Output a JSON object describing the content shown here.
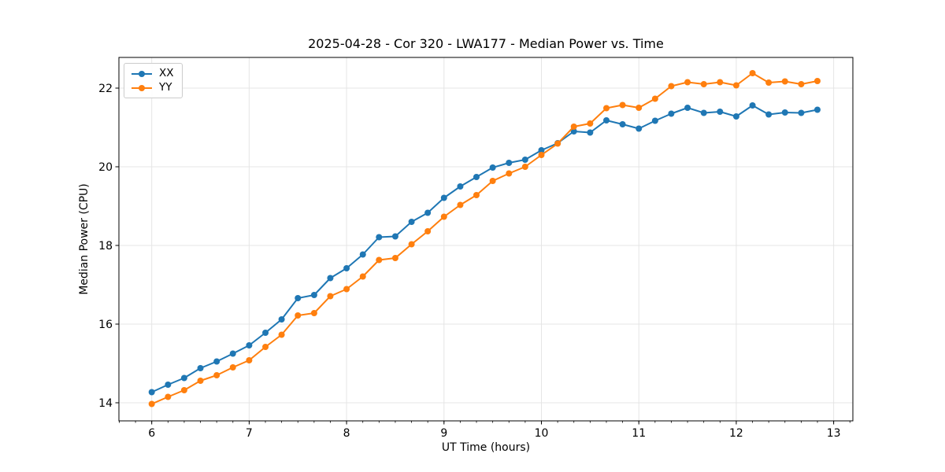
{
  "figure": {
    "background": "#ffffff",
    "text_color": "#000000",
    "grid_color": "#e5e5e5",
    "spine_color": "#000000"
  },
  "legend": {
    "position": "upper left",
    "entries": [
      {
        "label": "XX",
        "color": "#1f77b4"
      },
      {
        "label": "YY",
        "color": "#ff7f0e"
      }
    ]
  },
  "chart_data": {
    "type": "line",
    "title": "2025-04-28 - Cor 320 - LWA177 - Median Power vs. Time",
    "xlabel": "UT Time (hours)",
    "ylabel": "Median Power (CPU)",
    "xlim": [
      5.663,
      13.197
    ],
    "ylim": [
      13.54,
      22.78
    ],
    "x_ticks": [
      6,
      7,
      8,
      9,
      10,
      11,
      12,
      13
    ],
    "y_ticks": [
      14,
      16,
      18,
      20,
      22
    ],
    "x_minor_tick_step": 0.1666667,
    "grid": true,
    "legend_position": "upper left",
    "x": [
      6.0,
      6.167,
      6.333,
      6.5,
      6.667,
      6.833,
      7.0,
      7.167,
      7.333,
      7.5,
      7.667,
      7.833,
      8.0,
      8.167,
      8.333,
      8.5,
      8.667,
      8.833,
      9.0,
      9.167,
      9.333,
      9.5,
      9.667,
      9.833,
      10.0,
      10.167,
      10.333,
      10.5,
      10.667,
      10.833,
      11.0,
      11.167,
      11.333,
      11.5,
      11.667,
      11.833,
      12.0,
      12.167,
      12.333,
      12.5,
      12.667,
      12.833
    ],
    "series": [
      {
        "name": "XX",
        "color": "#1f77b4",
        "marker": "circle",
        "values": [
          14.27,
          14.46,
          14.63,
          14.88,
          15.05,
          15.25,
          15.46,
          15.78,
          16.12,
          16.66,
          16.74,
          17.17,
          17.42,
          17.77,
          18.21,
          18.23,
          18.6,
          18.83,
          19.21,
          19.5,
          19.74,
          19.98,
          20.1,
          20.18,
          20.42,
          20.6,
          20.9,
          20.87,
          21.18,
          21.08,
          20.97,
          21.17,
          21.35,
          21.5,
          21.37,
          21.4,
          21.28,
          21.56,
          21.33,
          21.38,
          21.37,
          21.45
        ]
      },
      {
        "name": "YY",
        "color": "#ff7f0e",
        "marker": "circle",
        "values": [
          13.97,
          14.15,
          14.32,
          14.56,
          14.7,
          14.9,
          15.08,
          15.42,
          15.73,
          16.22,
          16.28,
          16.71,
          16.89,
          17.21,
          17.63,
          17.68,
          18.03,
          18.36,
          18.73,
          19.03,
          19.28,
          19.64,
          19.83,
          20.0,
          20.3,
          20.59,
          21.02,
          21.1,
          21.49,
          21.57,
          21.5,
          21.73,
          22.05,
          22.15,
          22.1,
          22.15,
          22.07,
          22.38,
          22.14,
          22.17,
          22.1,
          22.18
        ]
      }
    ]
  }
}
